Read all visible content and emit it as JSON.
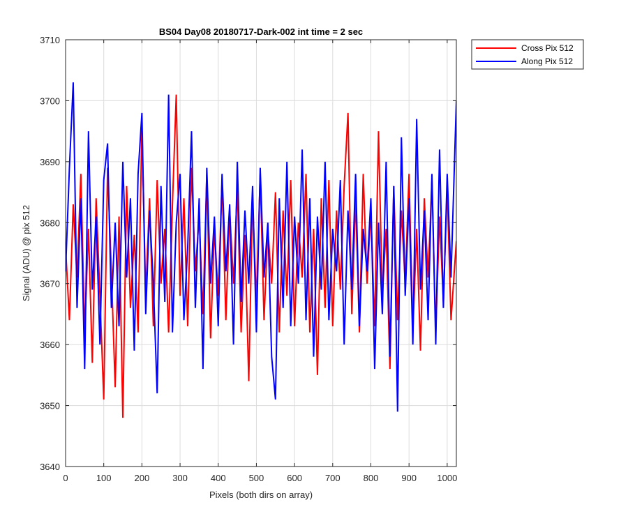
{
  "chart_data": {
    "type": "line",
    "title": "BS04 Day08 20180717-Dark-002 int time = 2 sec",
    "xlabel": "Pixels (both dirs on array)",
    "ylabel": "Signal (ADU) @ pix 512",
    "xlim": [
      0,
      1024
    ],
    "ylim": [
      3640,
      3710
    ],
    "xticks": [
      0,
      100,
      200,
      300,
      400,
      500,
      600,
      700,
      800,
      900,
      1000
    ],
    "yticks": [
      3640,
      3650,
      3660,
      3670,
      3680,
      3690,
      3700,
      3710
    ],
    "grid": true,
    "legend_position": "outside-top-right",
    "series": [
      {
        "name": "Cross Pix 512",
        "color": "#ff0000",
        "x": [
          0,
          10,
          20,
          30,
          40,
          50,
          60,
          70,
          80,
          90,
          100,
          110,
          120,
          130,
          140,
          150,
          160,
          170,
          180,
          190,
          200,
          210,
          220,
          230,
          240,
          250,
          260,
          270,
          280,
          290,
          300,
          310,
          320,
          330,
          340,
          350,
          360,
          370,
          380,
          390,
          400,
          410,
          420,
          430,
          440,
          450,
          460,
          470,
          480,
          490,
          500,
          510,
          520,
          530,
          540,
          550,
          560,
          570,
          580,
          590,
          600,
          610,
          620,
          630,
          640,
          650,
          660,
          670,
          680,
          690,
          700,
          710,
          720,
          730,
          740,
          750,
          760,
          770,
          780,
          790,
          800,
          810,
          820,
          830,
          840,
          850,
          860,
          870,
          880,
          890,
          900,
          910,
          920,
          930,
          940,
          950,
          960,
          970,
          980,
          990,
          1000,
          1010,
          1024
        ],
        "values": [
          3676,
          3664,
          3683,
          3671,
          3688,
          3662,
          3679,
          3657,
          3684,
          3668,
          3651,
          3689,
          3672,
          3653,
          3681,
          3648,
          3686,
          3666,
          3678,
          3662,
          3696,
          3668,
          3684,
          3663,
          3687,
          3670,
          3679,
          3662,
          3683,
          3701,
          3668,
          3684,
          3663,
          3689,
          3672,
          3681,
          3665,
          3688,
          3661,
          3679,
          3668,
          3687,
          3664,
          3682,
          3670,
          3686,
          3662,
          3678,
          3654,
          3684,
          3667,
          3688,
          3664,
          3679,
          3670,
          3685,
          3662,
          3682,
          3668,
          3687,
          3663,
          3680,
          3671,
          3688,
          3662,
          3679,
          3655,
          3684,
          3666,
          3687,
          3663,
          3682,
          3669,
          3686,
          3698,
          3665,
          3684,
          3662,
          3688,
          3670,
          3682,
          3663,
          3695,
          3668,
          3679,
          3656,
          3686,
          3664,
          3682,
          3670,
          3688,
          3662,
          3679,
          3659,
          3684,
          3671,
          3687,
          3662,
          3681,
          3667,
          3686,
          3664,
          3677
        ]
      },
      {
        "name": "Along Pix 512",
        "color": "#0000ff",
        "x": [
          0,
          10,
          20,
          30,
          40,
          50,
          60,
          70,
          80,
          90,
          100,
          110,
          120,
          130,
          140,
          150,
          160,
          170,
          180,
          190,
          200,
          210,
          220,
          230,
          240,
          250,
          260,
          270,
          280,
          290,
          300,
          310,
          320,
          330,
          340,
          350,
          360,
          370,
          380,
          390,
          400,
          410,
          420,
          430,
          440,
          450,
          460,
          470,
          480,
          490,
          500,
          510,
          520,
          530,
          540,
          550,
          560,
          570,
          580,
          590,
          600,
          610,
          620,
          630,
          640,
          650,
          660,
          670,
          680,
          690,
          700,
          710,
          720,
          730,
          740,
          750,
          760,
          770,
          780,
          790,
          800,
          810,
          820,
          830,
          840,
          850,
          860,
          870,
          880,
          890,
          900,
          910,
          920,
          930,
          940,
          950,
          960,
          970,
          980,
          990,
          1000,
          1010,
          1024
        ],
        "values": [
          3672,
          3689,
          3703,
          3666,
          3684,
          3656,
          3695,
          3669,
          3681,
          3660,
          3687,
          3693,
          3666,
          3680,
          3663,
          3690,
          3671,
          3684,
          3659,
          3688,
          3698,
          3665,
          3682,
          3670,
          3652,
          3686,
          3667,
          3701,
          3662,
          3680,
          3688,
          3664,
          3676,
          3695,
          3666,
          3684,
          3656,
          3689,
          3670,
          3681,
          3663,
          3688,
          3672,
          3683,
          3660,
          3690,
          3667,
          3682,
          3670,
          3686,
          3662,
          3689,
          3671,
          3680,
          3658,
          3651,
          3684,
          3666,
          3690,
          3663,
          3681,
          3670,
          3692,
          3664,
          3684,
          3658,
          3681,
          3669,
          3690,
          3664,
          3679,
          3672,
          3687,
          3660,
          3682,
          3669,
          3688,
          3663,
          3679,
          3672,
          3684,
          3656,
          3680,
          3665,
          3690,
          3658,
          3686,
          3649,
          3694,
          3668,
          3684,
          3660,
          3697,
          3669,
          3682,
          3664,
          3688,
          3660,
          3692,
          3666,
          3688,
          3671,
          3700
        ]
      }
    ]
  }
}
